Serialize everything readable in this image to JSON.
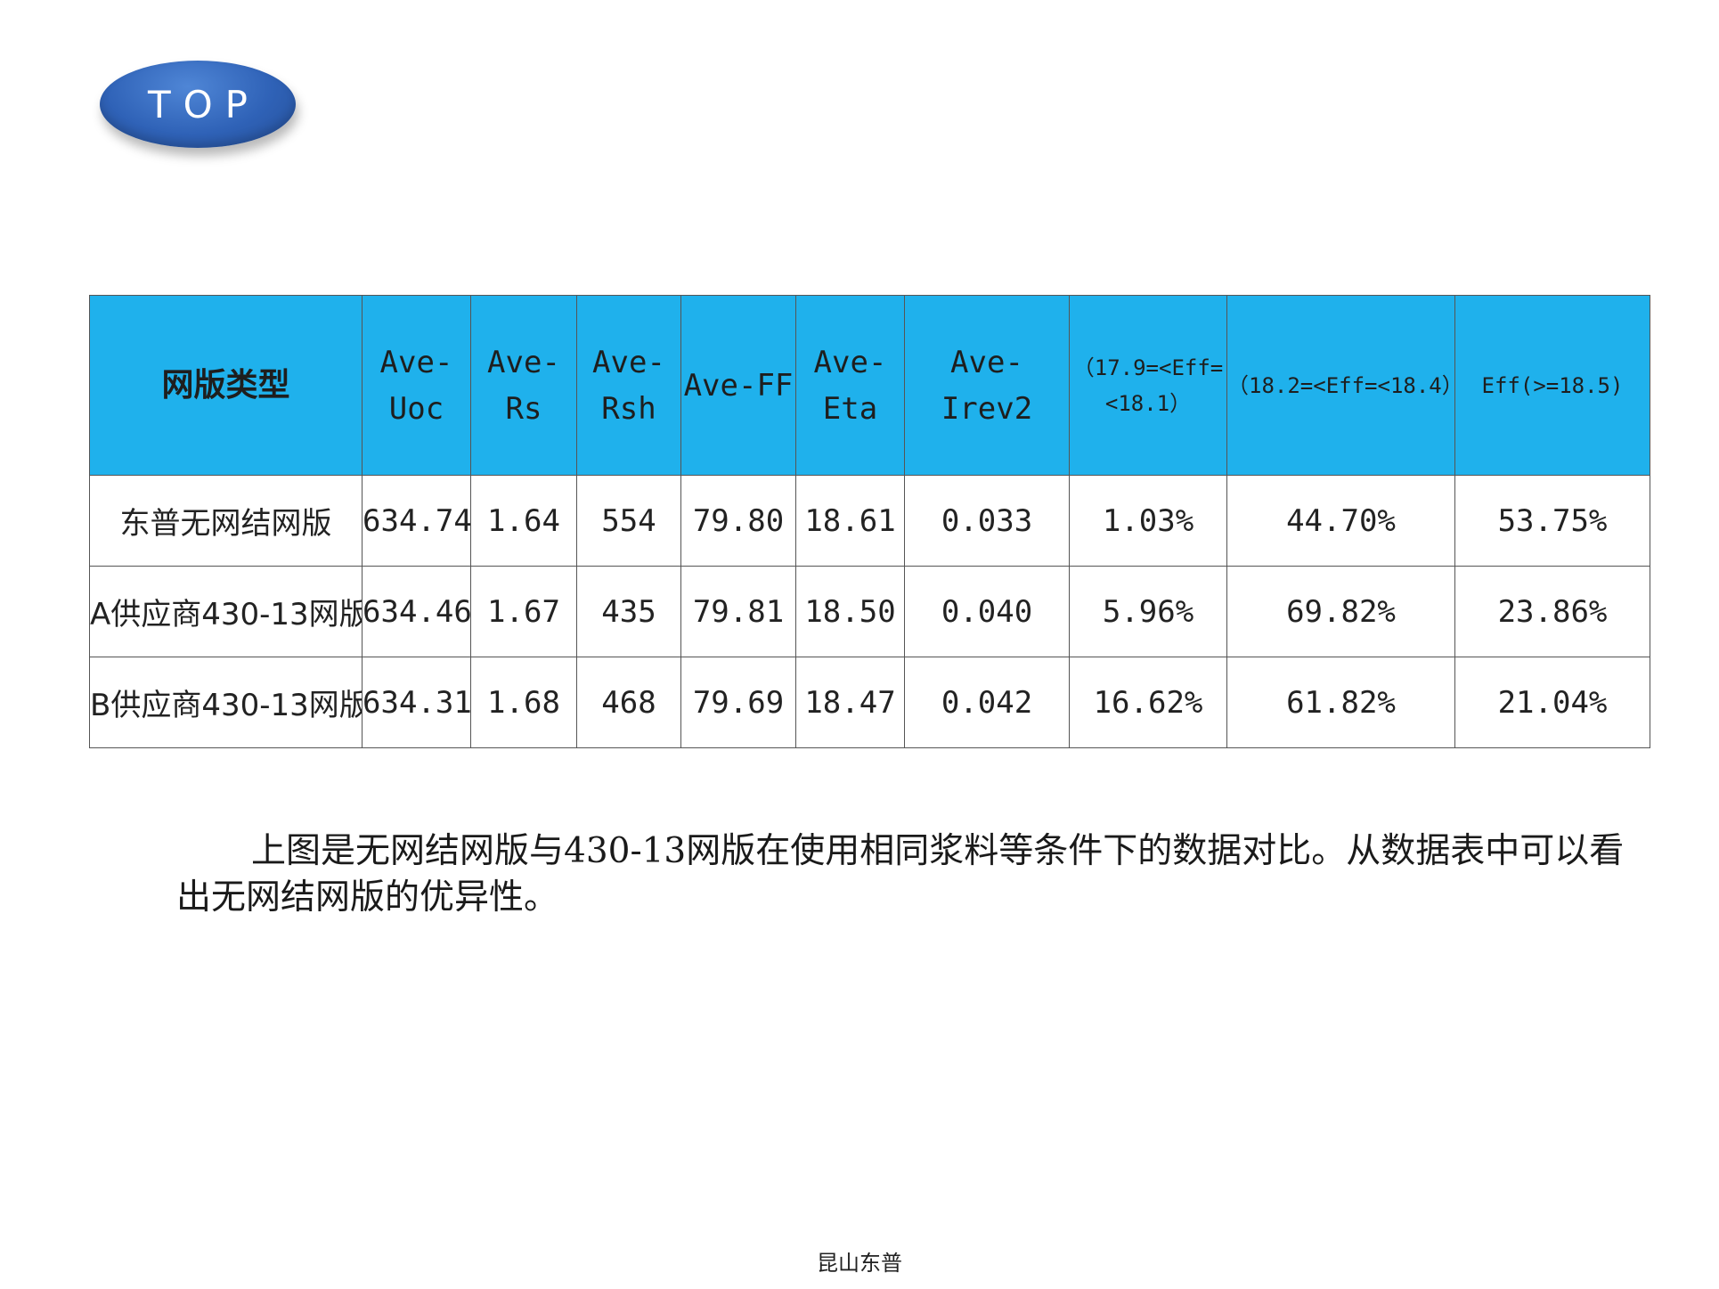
{
  "badge": {
    "label": "TOP"
  },
  "table": {
    "headers": [
      "网版类型",
      "Ave-Uoc",
      "Ave-Rs",
      "Ave-Rsh",
      "Ave-FF",
      "Ave-Eta",
      "Ave-Irev2",
      "（17.9=<Eff=<18.1）",
      "（18.2=<Eff=<18.4）",
      "Eff(>=18.5)"
    ],
    "rows": [
      [
        "东普无网结网版",
        "634.74",
        "1.64",
        "554",
        "79.80",
        "18.61",
        "0.033",
        "1.03%",
        "44.70%",
        "53.75%"
      ],
      [
        "A供应商430-13网版",
        "634.46",
        "1.67",
        "435",
        "79.81",
        "18.50",
        "0.040",
        "5.96%",
        "69.82%",
        "23.86%"
      ],
      [
        "B供应商430-13网版",
        "634.31",
        "1.68",
        "468",
        "79.69",
        "18.47",
        "0.042",
        "16.62%",
        "61.82%",
        "21.04%"
      ]
    ]
  },
  "caption": "上图是无网结网版与430-13网版在使用相同浆料等条件下的数据对比。从数据表中可以看出无网结网版的优异性。",
  "footer": "昆山东普"
}
